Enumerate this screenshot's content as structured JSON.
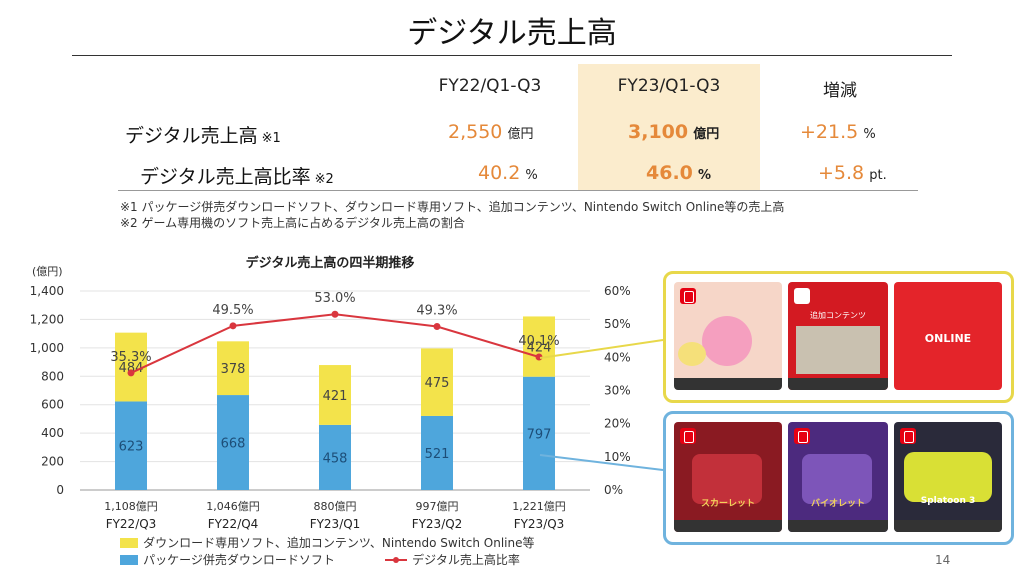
{
  "title": "デジタル売上高",
  "table": {
    "headers": [
      "FY22/Q1-Q3",
      "FY23/Q1-Q3",
      "増減"
    ],
    "rows": [
      {
        "label": "デジタル売上高",
        "note": "※1",
        "fy22": "2,550",
        "fy22_unit": "億円",
        "fy23": "3,100",
        "fy23_unit": "億円",
        "change": "+21.5",
        "change_unit": "%"
      },
      {
        "label": "デジタル売上高比率",
        "note": "※2",
        "fy22": "40.2",
        "fy22_unit": "%",
        "fy23": "46.0",
        "fy23_unit": "%",
        "change": "+5.8",
        "change_unit": "pt."
      }
    ],
    "footnotes": [
      "※1 パッケージ併売ダウンロードソフト、ダウンロード専用ソフト、追加コンテンツ、Nintendo Switch Online等の売上高",
      "※2 ゲーム専用機のソフト売上高に占めるデジタル売上高の割合"
    ]
  },
  "chart_data": {
    "type": "bar",
    "title": "デジタル売上高の四半期推移",
    "y_unit_label": "(億円)",
    "categories": [
      "FY22/Q3",
      "FY22/Q4",
      "FY23/Q1",
      "FY23/Q2",
      "FY23/Q3"
    ],
    "totals": [
      "1,108億円",
      "1,046億円",
      "880億円",
      "997億円",
      "1,221億円"
    ],
    "series": [
      {
        "name": "パッケージ併売ダウンロードソフト",
        "values": [
          623,
          668,
          458,
          521,
          797
        ],
        "color": "#4ea6dc"
      },
      {
        "name": "ダウンロード専用ソフト、追加コンテンツ、Nintendo Switch Online等",
        "values": [
          484,
          378,
          421,
          475,
          424
        ],
        "color": "#f3e34b"
      },
      {
        "name": "デジタル売上高比率",
        "type": "line",
        "values": [
          35.3,
          49.5,
          53.0,
          49.3,
          40.1
        ],
        "labels": [
          "35.3%",
          "49.5%",
          "53.0%",
          "49.3%",
          "40.1%"
        ],
        "color": "#d9363e"
      }
    ],
    "ylim": [
      0,
      1400
    ],
    "yticks": [
      0,
      200,
      400,
      600,
      800,
      1000,
      1200,
      1400
    ],
    "ytick_labels": [
      "0",
      "200",
      "400",
      "600",
      "800",
      "1,000",
      "1,200",
      "1,400"
    ],
    "y2lim": [
      0,
      60
    ],
    "y2ticks": [
      0,
      10,
      20,
      30,
      40,
      50,
      60
    ],
    "y2tick_labels": [
      "0%",
      "10%",
      "20%",
      "30%",
      "40%",
      "50%",
      "60%"
    ],
    "grid": true,
    "legend": "bottom-left"
  },
  "products": {
    "top": [
      {
        "name": "kirby-card",
        "text": ""
      },
      {
        "name": "dlc-card",
        "text": "追加コンテンツ"
      },
      {
        "name": "online-card",
        "text": "ONLINE"
      }
    ],
    "bottom": [
      {
        "name": "scarlet-card",
        "text": "スカーレット"
      },
      {
        "name": "violet-card",
        "text": "バイオレット"
      },
      {
        "name": "splatoon-card",
        "text": "Splatoon 3"
      }
    ]
  },
  "page_number": "14"
}
